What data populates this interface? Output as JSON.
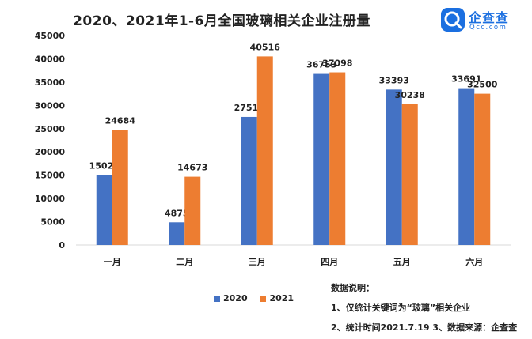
{
  "title": "2020、2021年1-6月全国玻璃相关企业注册量",
  "logo": {
    "name": "企查查",
    "sub": "Qcc.com"
  },
  "colors": {
    "s2020": "#4472c4",
    "s2021": "#ed7d31"
  },
  "chart_data": {
    "type": "bar",
    "title": "2020、2021年1-6月全国玻璃相关企业注册量",
    "categories": [
      "一月",
      "二月",
      "三月",
      "四月",
      "五月",
      "六月"
    ],
    "series": [
      {
        "name": "2020",
        "values": [
          15028,
          4875,
          27518,
          36753,
          33393,
          33691
        ]
      },
      {
        "name": "2021",
        "values": [
          24684,
          14673,
          40516,
          37098,
          30238,
          32500
        ]
      }
    ],
    "yticks": [
      "0",
      "5000",
      "10000",
      "15000",
      "20000",
      "25000",
      "30000",
      "35000",
      "40000",
      "45000"
    ],
    "ylim": [
      0,
      45000
    ],
    "grid": false,
    "legend": "bottom"
  },
  "notes": {
    "heading": "数据说明：",
    "line1": "1、仅统计关键词为“玻璃”相关企业",
    "line2": "2、统计时间2021.7.19 3、数据来源：企查查"
  }
}
